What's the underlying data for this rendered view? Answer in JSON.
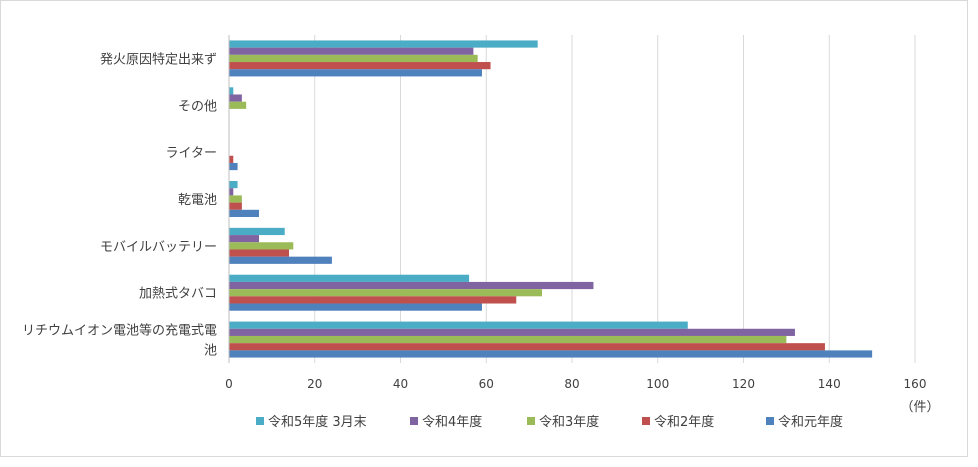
{
  "chart_data": {
    "type": "bar",
    "orientation": "horizontal",
    "categories": [
      "発火原因特定出来ず",
      "その他",
      "ライター",
      "乾電池",
      "モバイルバッテリー",
      "加熱式タバコ",
      "リチウムイオン電池等の充電式電池"
    ],
    "category_label_lines": [
      [
        "発火原因特定出来ず"
      ],
      [
        "その他"
      ],
      [
        "ライター"
      ],
      [
        "乾電池"
      ],
      [
        "モバイルバッテリー"
      ],
      [
        "加熱式タバコ"
      ],
      [
        "リチウムイオン電池等の充電式電",
        "池"
      ]
    ],
    "series": [
      {
        "name": "令和5年度 3月末",
        "color": "#4bacc6",
        "values": [
          72,
          1,
          0,
          2,
          13,
          56,
          107
        ]
      },
      {
        "name": "令和4年度",
        "color": "#8064a2",
        "values": [
          57,
          3,
          0,
          1,
          7,
          85,
          132
        ]
      },
      {
        "name": "令和3年度",
        "color": "#9bbb59",
        "values": [
          58,
          4,
          0,
          3,
          15,
          73,
          130
        ]
      },
      {
        "name": "令和2年度",
        "color": "#c0504d",
        "values": [
          61,
          0,
          1,
          3,
          14,
          67,
          139
        ]
      },
      {
        "name": "令和元年度",
        "color": "#4f81bd",
        "values": [
          59,
          0,
          2,
          7,
          24,
          59,
          150
        ]
      }
    ],
    "xlim": [
      0,
      160
    ],
    "xticks": [
      0,
      20,
      40,
      60,
      80,
      100,
      120,
      140,
      160
    ],
    "unit_label": "（件）",
    "grid": "vertical",
    "legend_position": "bottom"
  }
}
